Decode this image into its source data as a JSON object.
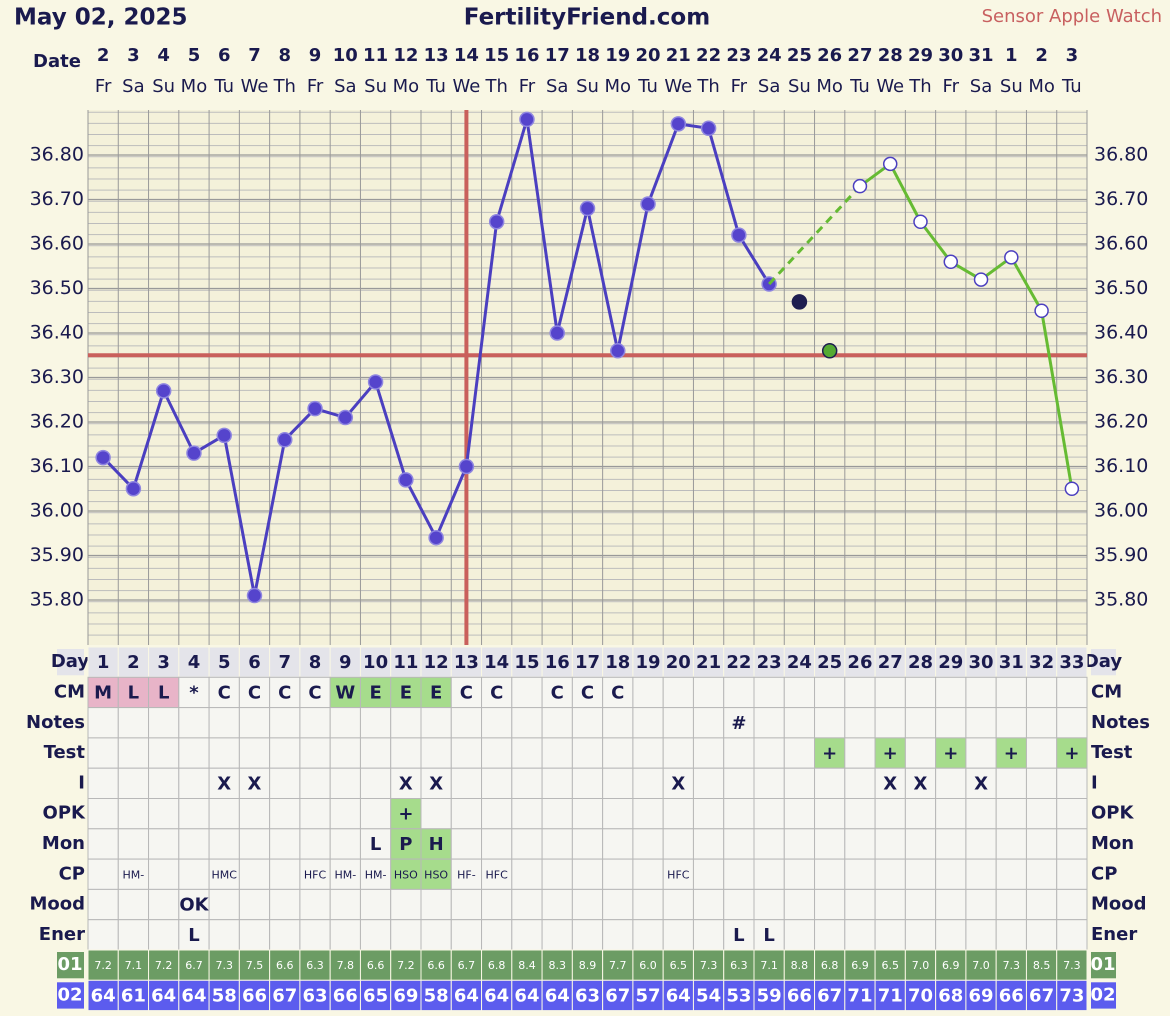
{
  "header": {
    "date": "May 02, 2025",
    "site": "FertilityFriend.com",
    "sensor": "Sensor Apple Watch"
  },
  "chart_data": {
    "type": "line",
    "date_label": "Date",
    "dates": [
      2,
      3,
      4,
      5,
      6,
      7,
      8,
      9,
      10,
      11,
      12,
      13,
      14,
      15,
      16,
      17,
      18,
      19,
      20,
      21,
      22,
      23,
      24,
      25,
      26,
      27,
      28,
      29,
      30,
      31,
      1,
      2,
      3
    ],
    "weekdays": [
      "Fr",
      "Sa",
      "Su",
      "Mo",
      "Tu",
      "We",
      "Th",
      "Fr",
      "Sa",
      "Su",
      "Mo",
      "Tu",
      "We",
      "Th",
      "Fr",
      "Sa",
      "Su",
      "Mo",
      "Tu",
      "We",
      "Th",
      "Fr",
      "Sa",
      "Su",
      "Mo",
      "Tu",
      "We",
      "Th",
      "Fr",
      "Sa",
      "Su",
      "Mo",
      "Tu"
    ],
    "ylim": [
      35.7,
      36.9
    ],
    "yticks": [
      {
        "value": 35.8,
        "label": "35.80"
      },
      {
        "value": 35.9,
        "label": "35.90"
      },
      {
        "value": 36.0,
        "label": "36.00"
      },
      {
        "value": 36.1,
        "label": "36.10"
      },
      {
        "value": 36.2,
        "label": "36.20"
      },
      {
        "value": 36.3,
        "label": "36.30"
      },
      {
        "value": 36.4,
        "label": "36.40"
      },
      {
        "value": 36.5,
        "label": "36.50"
      },
      {
        "value": 36.6,
        "label": "36.60"
      },
      {
        "value": 36.7,
        "label": "36.70"
      },
      {
        "value": 36.8,
        "label": "36.80"
      }
    ],
    "coverline": 36.35,
    "ovulation_day": 13,
    "series": [
      {
        "color": "#4b3fc0",
        "marker": "filled",
        "values": [
          36.12,
          36.05,
          36.27,
          36.13,
          36.17,
          35.81,
          36.16,
          36.23,
          36.21,
          36.29,
          36.07,
          35.94,
          36.1,
          36.65,
          36.88,
          36.4,
          36.68,
          36.36,
          36.69,
          36.87,
          36.86,
          36.62,
          36.51,
          null,
          null,
          null,
          null,
          null,
          null,
          null,
          null,
          null,
          null
        ]
      },
      {
        "color": "#66bb33",
        "marker": "open",
        "link": "dashed",
        "values": [
          null,
          null,
          null,
          null,
          null,
          null,
          null,
          null,
          null,
          null,
          null,
          null,
          null,
          null,
          null,
          null,
          null,
          null,
          null,
          null,
          null,
          null,
          null,
          null,
          null,
          36.73,
          36.78,
          36.65,
          36.56,
          36.52,
          36.57,
          36.45,
          36.05
        ]
      },
      {
        "color": "#1e1e50",
        "marker": "dot",
        "values": [
          null,
          null,
          null,
          null,
          null,
          null,
          null,
          null,
          null,
          null,
          null,
          null,
          null,
          null,
          null,
          null,
          null,
          null,
          null,
          null,
          null,
          null,
          null,
          36.47,
          null,
          null,
          null,
          null,
          null,
          null,
          null,
          null,
          null
        ]
      },
      {
        "color": "#55aa33",
        "marker": "dot",
        "values": [
          null,
          null,
          null,
          null,
          null,
          null,
          null,
          null,
          null,
          null,
          null,
          null,
          null,
          null,
          null,
          null,
          null,
          null,
          null,
          null,
          null,
          null,
          null,
          null,
          36.36,
          null,
          null,
          null,
          null,
          null,
          null,
          null,
          null
        ]
      }
    ]
  },
  "table": {
    "rows": [
      {
        "label": "Day",
        "fill": "#e4e4ea",
        "cells": [
          1,
          2,
          3,
          4,
          5,
          6,
          7,
          8,
          9,
          10,
          11,
          12,
          13,
          14,
          15,
          16,
          17,
          18,
          19,
          20,
          21,
          22,
          23,
          24,
          25,
          26,
          27,
          28,
          29,
          30,
          31,
          32,
          33
        ]
      },
      {
        "label": "CM",
        "cells": [
          "M",
          "L",
          "L",
          "*",
          "C",
          "C",
          "C",
          "C",
          "W",
          "E",
          "E",
          "E",
          "C",
          "C",
          null,
          "C",
          "C",
          "C",
          null,
          null,
          null,
          null,
          null,
          null,
          null,
          null,
          null,
          null,
          null,
          null,
          null,
          null,
          null
        ],
        "cell_fills": [
          "#e8b4c8",
          "#e8b4c8",
          "#e8b4c8",
          null,
          null,
          null,
          null,
          null,
          "#a6dc8c",
          "#a6dc8c",
          "#a6dc8c",
          "#a6dc8c",
          null,
          null,
          null,
          null,
          null,
          null,
          null,
          null,
          null,
          null,
          null,
          null,
          null,
          null,
          null,
          null,
          null,
          null,
          null,
          null,
          null
        ]
      },
      {
        "label": "Notes",
        "cells": [
          null,
          null,
          null,
          null,
          null,
          null,
          null,
          null,
          null,
          null,
          null,
          null,
          null,
          null,
          null,
          null,
          null,
          null,
          null,
          null,
          null,
          "#",
          null,
          null,
          null,
          null,
          null,
          null,
          null,
          null,
          null,
          null,
          null
        ]
      },
      {
        "label": "Test",
        "cells": [
          null,
          null,
          null,
          null,
          null,
          null,
          null,
          null,
          null,
          null,
          null,
          null,
          null,
          null,
          null,
          null,
          null,
          null,
          null,
          null,
          null,
          null,
          null,
          null,
          "+",
          null,
          "+",
          null,
          "+",
          null,
          "+",
          null,
          "+"
        ],
        "cell_fills": [
          null,
          null,
          null,
          null,
          null,
          null,
          null,
          null,
          null,
          null,
          null,
          null,
          null,
          null,
          null,
          null,
          null,
          null,
          null,
          null,
          null,
          null,
          null,
          null,
          "#a6dc8c",
          null,
          "#a6dc8c",
          null,
          "#a6dc8c",
          null,
          "#a6dc8c",
          null,
          "#a6dc8c"
        ]
      },
      {
        "label": "I",
        "cells": [
          null,
          null,
          null,
          null,
          "X",
          "X",
          null,
          null,
          null,
          null,
          "X",
          "X",
          null,
          null,
          null,
          null,
          null,
          null,
          null,
          "X",
          null,
          null,
          null,
          null,
          null,
          null,
          "X",
          "X",
          null,
          "X",
          null,
          null,
          null
        ]
      },
      {
        "label": "OPK",
        "cells": [
          null,
          null,
          null,
          null,
          null,
          null,
          null,
          null,
          null,
          null,
          "+",
          null,
          null,
          null,
          null,
          null,
          null,
          null,
          null,
          null,
          null,
          null,
          null,
          null,
          null,
          null,
          null,
          null,
          null,
          null,
          null,
          null,
          null
        ],
        "cell_fills": [
          null,
          null,
          null,
          null,
          null,
          null,
          null,
          null,
          null,
          null,
          "#a6dc8c",
          null,
          null,
          null,
          null,
          null,
          null,
          null,
          null,
          null,
          null,
          null,
          null,
          null,
          null,
          null,
          null,
          null,
          null,
          null,
          null,
          null,
          null
        ]
      },
      {
        "label": "Mon",
        "cells": [
          null,
          null,
          null,
          null,
          null,
          null,
          null,
          null,
          null,
          "L",
          "P",
          "H",
          null,
          null,
          null,
          null,
          null,
          null,
          null,
          null,
          null,
          null,
          null,
          null,
          null,
          null,
          null,
          null,
          null,
          null,
          null,
          null,
          null
        ],
        "cell_fills": [
          null,
          null,
          null,
          null,
          null,
          null,
          null,
          null,
          null,
          null,
          "#a6dc8c",
          "#a6dc8c",
          null,
          null,
          null,
          null,
          null,
          null,
          null,
          null,
          null,
          null,
          null,
          null,
          null,
          null,
          null,
          null,
          null,
          null,
          null,
          null,
          null
        ]
      },
      {
        "label": "CP",
        "small": true,
        "cells": [
          null,
          "HM-",
          null,
          null,
          "HMC",
          null,
          null,
          "HFC",
          "HM-",
          "HM-",
          "HSO",
          "HSO",
          "HF-",
          "HFC",
          null,
          null,
          null,
          null,
          null,
          "HFC",
          null,
          null,
          null,
          null,
          null,
          null,
          null,
          null,
          null,
          null,
          null,
          null,
          null
        ],
        "cell_fills": [
          null,
          null,
          null,
          null,
          null,
          null,
          null,
          null,
          null,
          null,
          "#a6dc8c",
          "#a6dc8c",
          null,
          null,
          null,
          null,
          null,
          null,
          null,
          null,
          null,
          null,
          null,
          null,
          null,
          null,
          null,
          null,
          null,
          null,
          null,
          null,
          null
        ]
      },
      {
        "label": "Mood",
        "cells": [
          null,
          null,
          null,
          "OK",
          null,
          null,
          null,
          null,
          null,
          null,
          null,
          null,
          null,
          null,
          null,
          null,
          null,
          null,
          null,
          null,
          null,
          null,
          null,
          null,
          null,
          null,
          null,
          null,
          null,
          null,
          null,
          null,
          null
        ]
      },
      {
        "label": "Ener",
        "cells": [
          null,
          null,
          null,
          "L",
          null,
          null,
          null,
          null,
          null,
          null,
          null,
          null,
          null,
          null,
          null,
          null,
          null,
          null,
          null,
          null,
          null,
          "L",
          "L",
          null,
          null,
          null,
          null,
          null,
          null,
          null,
          null,
          null,
          null
        ]
      },
      {
        "label": "01",
        "small": true,
        "fill": "#6c9c64",
        "text_color": "#ffffff",
        "cells": [
          "7.2",
          "7.1",
          "7.2",
          "6.7",
          "7.3",
          "7.5",
          "6.6",
          "6.3",
          "7.8",
          "6.6",
          "7.2",
          "6.6",
          "6.7",
          "6.8",
          "8.4",
          "8.3",
          "8.9",
          "7.7",
          "6.0",
          "6.5",
          "7.3",
          "6.3",
          "7.1",
          "8.8",
          "6.8",
          "6.9",
          "6.5",
          "7.0",
          "6.9",
          "7.0",
          "7.3",
          "8.5",
          "7.3"
        ]
      },
      {
        "label": "02",
        "fill": "#5c5cee",
        "text_color": "#ffffff",
        "cells": [
          64,
          61,
          64,
          64,
          58,
          66,
          67,
          63,
          66,
          65,
          69,
          58,
          64,
          64,
          64,
          64,
          63,
          67,
          57,
          64,
          54,
          53,
          59,
          66,
          67,
          71,
          71,
          70,
          68,
          69,
          66,
          67,
          73
        ]
      }
    ]
  }
}
